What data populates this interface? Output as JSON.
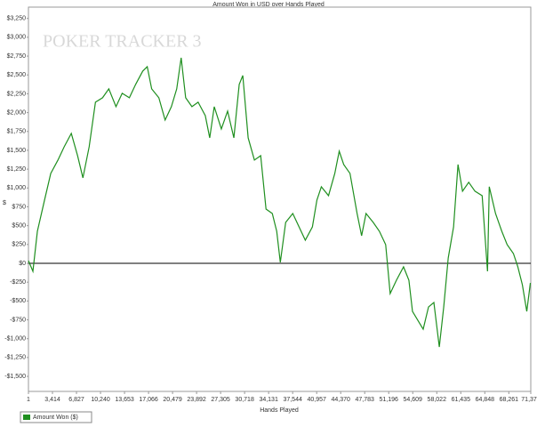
{
  "chart_data": {
    "type": "line",
    "title": "Amount Won in USD over Hands Played",
    "watermark": "POKER TRACKER 3",
    "x_label": "Hands Played",
    "y_label": "$",
    "xlim": [
      1,
      71379
    ],
    "xticks": [
      1,
      {
        "value": 3414,
        "label": "3,414"
      },
      {
        "value": 6827,
        "label": "6,827"
      },
      {
        "value": 10240,
        "label": "10,240"
      },
      {
        "value": 13653,
        "label": "13,653"
      },
      {
        "value": 17066,
        "label": "17,066"
      },
      {
        "value": 20479,
        "label": "20,479"
      },
      {
        "value": 23892,
        "label": "23,892"
      },
      {
        "value": 27305,
        "label": "27,305"
      },
      {
        "value": 30718,
        "label": "30,718"
      },
      {
        "value": 34131,
        "label": "34,131"
      },
      {
        "value": 37544,
        "label": "37,544"
      },
      {
        "value": 40957,
        "label": "40,957"
      },
      {
        "value": 44370,
        "label": "44,370"
      },
      {
        "value": 47783,
        "label": "47,783"
      },
      {
        "value": 51196,
        "label": "51,196"
      },
      {
        "value": 54609,
        "label": "54,609"
      },
      {
        "value": 58022,
        "label": "58,022"
      },
      {
        "value": 61435,
        "label": "61,435"
      },
      {
        "value": 64848,
        "label": "64,848"
      },
      {
        "value": 68261,
        "label": "68,261"
      },
      {
        "value": 71379,
        "label": "71,379"
      }
    ],
    "ylim": [
      -1700,
      3400
    ],
    "yticks": [
      {
        "value": 3250,
        "label": "$3,250"
      },
      {
        "value": 3000,
        "label": "$3,000"
      },
      {
        "value": 2750,
        "label": "$2,750"
      },
      {
        "value": 2500,
        "label": "$2,500"
      },
      {
        "value": 2250,
        "label": "$2,250"
      },
      {
        "value": 2000,
        "label": "$2,000"
      },
      {
        "value": 1750,
        "label": "$1,750"
      },
      {
        "value": 1500,
        "label": "$1,500"
      },
      {
        "value": 1250,
        "label": "$1,250"
      },
      {
        "value": 1000,
        "label": "$1,000"
      },
      {
        "value": 750,
        "label": "$750"
      },
      {
        "value": 500,
        "label": "$500"
      },
      {
        "value": 250,
        "label": "$250"
      },
      {
        "value": 0,
        "label": "$0"
      },
      {
        "value": -250,
        "label": "-$250"
      },
      {
        "value": -500,
        "label": "-$500"
      },
      {
        "value": -750,
        "label": "-$750"
      },
      {
        "value": -1000,
        "label": "-$1,000"
      },
      {
        "value": -1250,
        "label": "-$1,250"
      },
      {
        "value": -1500,
        "label": "-$1,500"
      }
    ],
    "x": [
      1,
      635,
      1270,
      2285,
      3170,
      4190,
      5080,
      6090,
      6980,
      7740,
      8630,
      9520,
      10530,
      11420,
      12440,
      13320,
      14340,
      15230,
      16240,
      16880,
      17510,
      18530,
      19420,
      20310,
      21070,
      21700,
      22340,
      23230,
      24110,
      25130,
      25760,
      26400,
      27410,
      28300,
      29190,
      29950,
      30460,
      31220,
      32110,
      33000,
      33760,
      34650,
      35280,
      35790,
      36550,
      37560,
      38450,
      39340,
      40350,
      40990,
      41620,
      42640,
      43530,
      44160,
      44800,
      45690,
      46700,
      47340,
      47970,
      48990,
      49870,
      50760,
      51400,
      52290,
      53300,
      54060,
      54570,
      55330,
      56090,
      56850,
      57610,
      58380,
      59010,
      59650,
      60410,
      61040,
      61680,
      62560,
      63450,
      64470,
      65230,
      65480,
      66370,
      67260,
      68020,
      68910,
      69540,
      70180,
      70810,
      71320
    ],
    "series": [
      {
        "name": "Amount Won ($)",
        "color": "#1f8f1f",
        "values": [
          35,
          -106,
          425,
          839,
          1193,
          1370,
          1547,
          1724,
          1429,
          1134,
          1547,
          2138,
          2197,
          2315,
          2079,
          2256,
          2197,
          2374,
          2551,
          2610,
          2315,
          2197,
          1901,
          2079,
          2315,
          2728,
          2197,
          2079,
          2138,
          1960,
          1665,
          2079,
          1783,
          2020,
          1665,
          2374,
          2492,
          1665,
          1370,
          1429,
          720,
          661,
          425,
          12,
          543,
          661,
          484,
          307,
          484,
          839,
          1016,
          898,
          1193,
          1488,
          1311,
          1193,
          661,
          366,
          661,
          543,
          425,
          248,
          -402,
          -224,
          -47,
          -224,
          -638,
          -756,
          -874,
          -579,
          -520,
          -1110,
          -579,
          71,
          484,
          1311,
          957,
          1075,
          957,
          898,
          -106,
          1016,
          661,
          425,
          248,
          130,
          -47,
          -283,
          -638,
          -260
        ]
      }
    ]
  }
}
